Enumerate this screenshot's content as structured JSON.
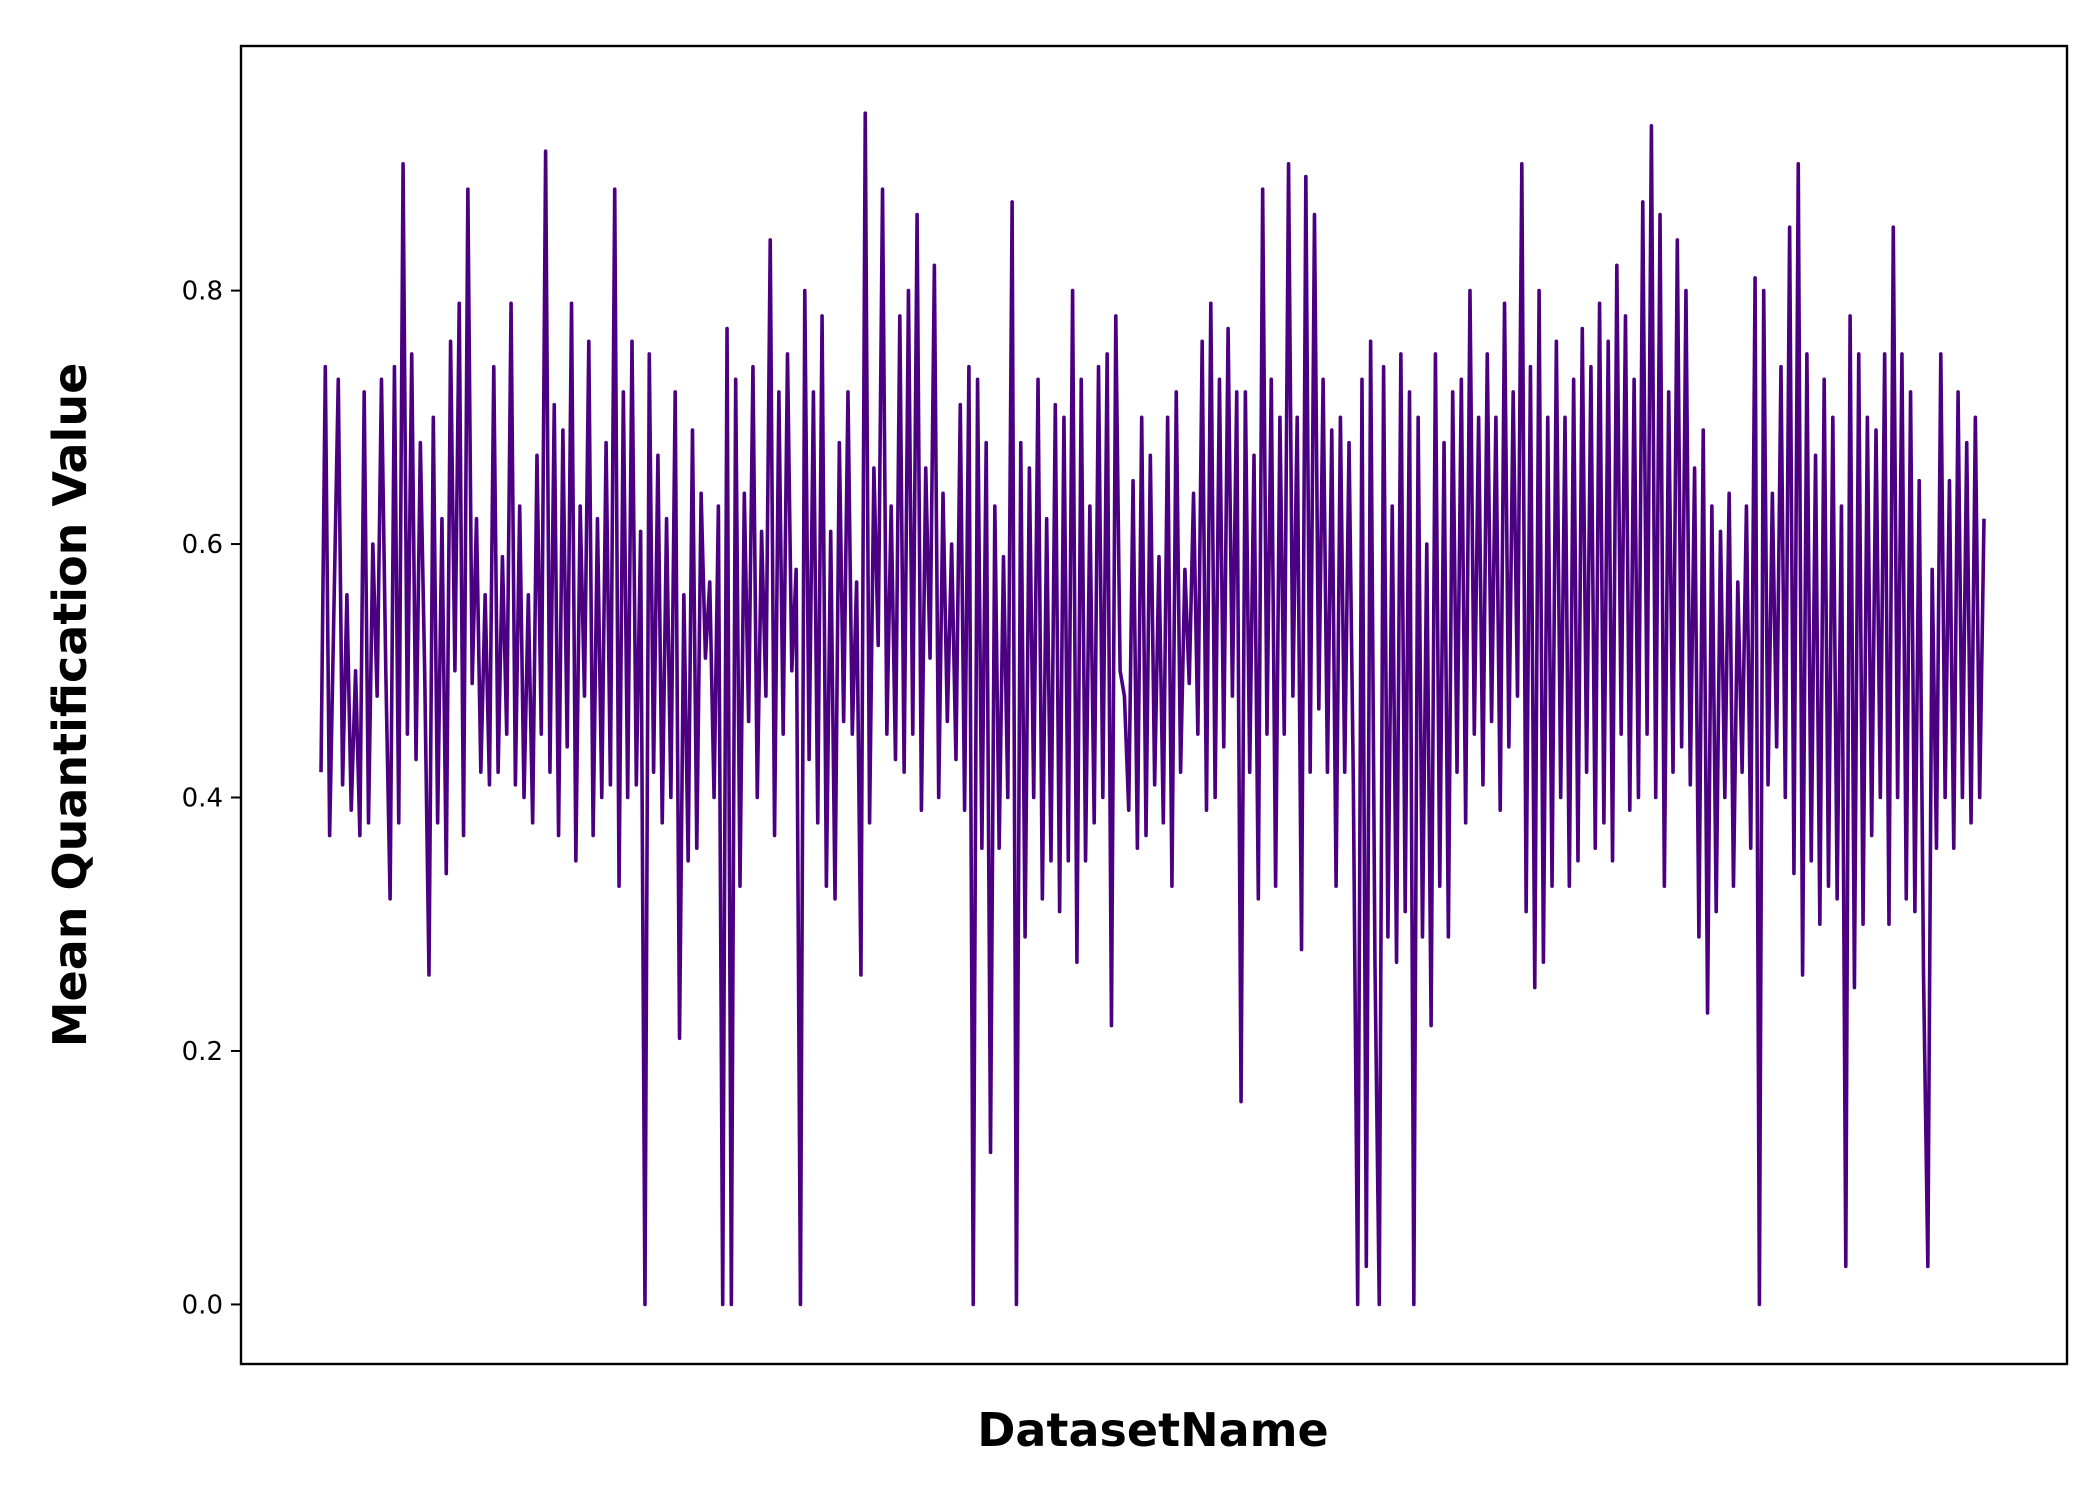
{
  "chart_data": {
    "type": "line",
    "title": "",
    "xlabel": "DatasetName",
    "ylabel": "Mean Quantification Value",
    "x_ticks_shown": false,
    "ylim": [
      -0.047,
      0.993
    ],
    "y_ticks": [
      0.0,
      0.2,
      0.4,
      0.6,
      0.8
    ],
    "y_tick_labels": [
      "0.0",
      "0.2",
      "0.4",
      "0.6",
      "0.8"
    ],
    "grid": false,
    "legend": "none",
    "line_color": "#4b0082",
    "series": [
      {
        "values": [
          0.42,
          0.74,
          0.37,
          0.55,
          0.73,
          0.41,
          0.56,
          0.39,
          0.5,
          0.37,
          0.72,
          0.38,
          0.6,
          0.48,
          0.73,
          0.5,
          0.32,
          0.74,
          0.38,
          0.9,
          0.45,
          0.75,
          0.43,
          0.68,
          0.5,
          0.26,
          0.7,
          0.38,
          0.62,
          0.34,
          0.76,
          0.5,
          0.79,
          0.37,
          0.88,
          0.49,
          0.62,
          0.42,
          0.56,
          0.41,
          0.74,
          0.42,
          0.59,
          0.45,
          0.79,
          0.41,
          0.63,
          0.4,
          0.56,
          0.38,
          0.67,
          0.45,
          0.91,
          0.42,
          0.71,
          0.37,
          0.69,
          0.44,
          0.79,
          0.35,
          0.63,
          0.48,
          0.76,
          0.37,
          0.62,
          0.4,
          0.68,
          0.41,
          0.88,
          0.33,
          0.72,
          0.4,
          0.76,
          0.41,
          0.61,
          0.0,
          0.75,
          0.42,
          0.67,
          0.38,
          0.62,
          0.4,
          0.72,
          0.21,
          0.56,
          0.35,
          0.69,
          0.36,
          0.64,
          0.51,
          0.57,
          0.4,
          0.63,
          0.0,
          0.77,
          0.0,
          0.73,
          0.33,
          0.64,
          0.46,
          0.74,
          0.4,
          0.61,
          0.48,
          0.84,
          0.37,
          0.72,
          0.45,
          0.75,
          0.5,
          0.58,
          0.0,
          0.8,
          0.43,
          0.72,
          0.38,
          0.78,
          0.33,
          0.61,
          0.32,
          0.68,
          0.46,
          0.72,
          0.45,
          0.57,
          0.26,
          0.94,
          0.38,
          0.66,
          0.52,
          0.88,
          0.45,
          0.63,
          0.43,
          0.78,
          0.42,
          0.8,
          0.45,
          0.86,
          0.39,
          0.66,
          0.51,
          0.82,
          0.4,
          0.64,
          0.46,
          0.6,
          0.43,
          0.71,
          0.39,
          0.74,
          0.0,
          0.73,
          0.36,
          0.68,
          0.12,
          0.63,
          0.36,
          0.59,
          0.4,
          0.87,
          0.0,
          0.68,
          0.29,
          0.66,
          0.4,
          0.73,
          0.32,
          0.62,
          0.35,
          0.71,
          0.31,
          0.7,
          0.35,
          0.8,
          0.27,
          0.73,
          0.35,
          0.63,
          0.38,
          0.74,
          0.4,
          0.75,
          0.22,
          0.78,
          0.5,
          0.48,
          0.39,
          0.65,
          0.36,
          0.7,
          0.37,
          0.67,
          0.41,
          0.59,
          0.38,
          0.7,
          0.33,
          0.72,
          0.42,
          0.58,
          0.49,
          0.64,
          0.45,
          0.76,
          0.39,
          0.79,
          0.4,
          0.73,
          0.44,
          0.77,
          0.48,
          0.72,
          0.16,
          0.72,
          0.42,
          0.67,
          0.32,
          0.88,
          0.45,
          0.73,
          0.33,
          0.7,
          0.45,
          0.9,
          0.48,
          0.7,
          0.28,
          0.89,
          0.42,
          0.86,
          0.47,
          0.73,
          0.42,
          0.69,
          0.33,
          0.7,
          0.42,
          0.68,
          0.41,
          0.0,
          0.73,
          0.03,
          0.76,
          0.27,
          0.0,
          0.74,
          0.29,
          0.63,
          0.27,
          0.75,
          0.31,
          0.72,
          0.0,
          0.7,
          0.29,
          0.6,
          0.22,
          0.75,
          0.33,
          0.68,
          0.29,
          0.72,
          0.42,
          0.73,
          0.38,
          0.8,
          0.45,
          0.7,
          0.41,
          0.75,
          0.46,
          0.7,
          0.39,
          0.79,
          0.44,
          0.72,
          0.48,
          0.9,
          0.31,
          0.74,
          0.25,
          0.8,
          0.27,
          0.7,
          0.33,
          0.76,
          0.4,
          0.7,
          0.33,
          0.73,
          0.35,
          0.77,
          0.42,
          0.74,
          0.36,
          0.79,
          0.38,
          0.76,
          0.35,
          0.82,
          0.45,
          0.78,
          0.39,
          0.73,
          0.4,
          0.87,
          0.45,
          0.93,
          0.4,
          0.86,
          0.33,
          0.72,
          0.42,
          0.84,
          0.44,
          0.8,
          0.41,
          0.66,
          0.29,
          0.69,
          0.23,
          0.63,
          0.31,
          0.61,
          0.4,
          0.64,
          0.33,
          0.57,
          0.42,
          0.63,
          0.36,
          0.81,
          0.0,
          0.8,
          0.41,
          0.64,
          0.44,
          0.74,
          0.4,
          0.85,
          0.34,
          0.9,
          0.26,
          0.75,
          0.35,
          0.67,
          0.3,
          0.73,
          0.33,
          0.7,
          0.32,
          0.63,
          0.03,
          0.78,
          0.25,
          0.75,
          0.3,
          0.7,
          0.37,
          0.69,
          0.4,
          0.75,
          0.3,
          0.85,
          0.4,
          0.75,
          0.32,
          0.72,
          0.31,
          0.65,
          0.26,
          0.03,
          0.58,
          0.36,
          0.75,
          0.4,
          0.65,
          0.36,
          0.72,
          0.4,
          0.68,
          0.38,
          0.7,
          0.4,
          0.62
        ]
      }
    ]
  }
}
